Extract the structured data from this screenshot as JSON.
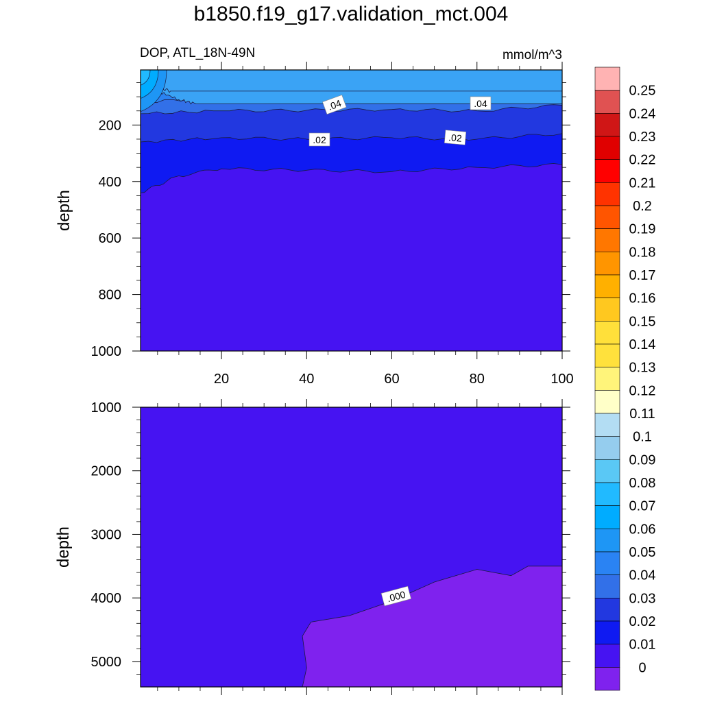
{
  "title": "b1850.f19_g17.validation_mct.004",
  "chart_data": [
    {
      "type": "contour",
      "panel": "upper",
      "left_label": "DOP, ATL_18N-49N",
      "right_label": "mmol/m^3",
      "xlabel": "",
      "ylabel": "depth",
      "xlim": [
        1,
        100
      ],
      "ylim": [
        1000,
        5
      ],
      "x_ticks": [
        "20",
        "40",
        "60",
        "80",
        "100"
      ],
      "y_ticks": [
        "200",
        "400",
        "600",
        "800",
        "1000"
      ],
      "contour_labels": [
        ".04",
        ".04",
        ".02",
        ".02"
      ],
      "contour_interval": 0.01,
      "contours": [
        {
          "level": 0.06,
          "color": "#3aa3f5",
          "profile": [
            [
              1,
              5
            ],
            [
              3,
              45
            ],
            [
              6,
              70
            ],
            [
              8,
              80
            ]
          ]
        },
        {
          "level": 0.05,
          "color": "#1e96f5",
          "profile": [
            [
              1,
              5
            ],
            [
              5,
              80
            ],
            [
              10,
              110
            ],
            [
              14,
              125
            ]
          ]
        },
        {
          "level": 0.04,
          "color": "#2a83f3",
          "profile": [
            [
              1,
              5
            ],
            [
              50,
              5
            ],
            [
              100,
              5
            ]
          ]
        },
        {
          "level": 0.03,
          "color": "#3270e8",
          "profile": [
            [
              1,
              120
            ],
            [
              20,
              100
            ],
            [
              40,
              105
            ],
            [
              60,
              103
            ],
            [
              80,
              100
            ],
            [
              100,
              85
            ]
          ]
        },
        {
          "level": 0.02,
          "color": "#2238e0",
          "profile": [
            [
              1,
              160
            ],
            [
              20,
              150
            ],
            [
              40,
              148
            ],
            [
              60,
              145
            ],
            [
              80,
              150
            ],
            [
              100,
              130
            ]
          ]
        },
        {
          "level": 0.01,
          "color": "#0f1af2",
          "profile": [
            [
              1,
              260
            ],
            [
              20,
              245
            ],
            [
              40,
              250
            ],
            [
              60,
              245
            ],
            [
              80,
              250
            ],
            [
              100,
              230
            ]
          ]
        },
        {
          "level": 0.0,
          "color": "#4613f2",
          "profile": [
            [
              1,
              440
            ],
            [
              10,
              380
            ],
            [
              20,
              355
            ],
            [
              40,
              360
            ],
            [
              60,
              365
            ],
            [
              80,
              350
            ],
            [
              100,
              340
            ]
          ]
        }
      ]
    },
    {
      "type": "contour",
      "panel": "lower",
      "xlabel": "",
      "ylabel": "depth",
      "xlim": [
        1,
        100
      ],
      "ylim": [
        5400,
        1000
      ],
      "y_ticks": [
        "1000",
        "2000",
        "3000",
        "4000",
        "5000"
      ],
      "contour_labels": [
        ".000"
      ],
      "regions": [
        {
          "level": 0.0,
          "color": "#4613f2"
        },
        {
          "level": -0.01,
          "color": "#7f22ee",
          "boundary": [
            [
              39,
              5400
            ],
            [
              40,
              5100
            ],
            [
              39,
              4600
            ],
            [
              41,
              4380
            ],
            [
              50,
              4280
            ],
            [
              60,
              4050
            ],
            [
              70,
              3750
            ],
            [
              80,
              3550
            ],
            [
              88,
              3650
            ],
            [
              92,
              3500
            ],
            [
              100,
              3500
            ]
          ]
        }
      ]
    }
  ],
  "colorbar": {
    "labels": [
      "0.25",
      "0.24",
      "0.23",
      "0.22",
      "0.21",
      "0.2",
      "0.19",
      "0.18",
      "0.17",
      "0.16",
      "0.15",
      "0.14",
      "0.13",
      "0.12",
      "0.11",
      "0.1",
      "0.09",
      "0.08",
      "0.07",
      "0.06",
      "0.05",
      "0.04",
      "0.03",
      "0.02",
      "0.01",
      "0"
    ],
    "colors": [
      "#ffb3b3",
      "#e05252",
      "#d01616",
      "#e00000",
      "#ff0000",
      "#ff3300",
      "#ff5500",
      "#ff7700",
      "#ff9500",
      "#ffb000",
      "#ffc81f",
      "#ffe03a",
      "#ffe13c",
      "#fff47a",
      "#ffffc8",
      "#b3ddf3",
      "#95cdee",
      "#5ac8f5",
      "#21baff",
      "#00acff",
      "#1e96f5",
      "#2a83f3",
      "#3270e8",
      "#2238e0",
      "#0f1af2",
      "#4613f2",
      "#7f22ee"
    ]
  }
}
